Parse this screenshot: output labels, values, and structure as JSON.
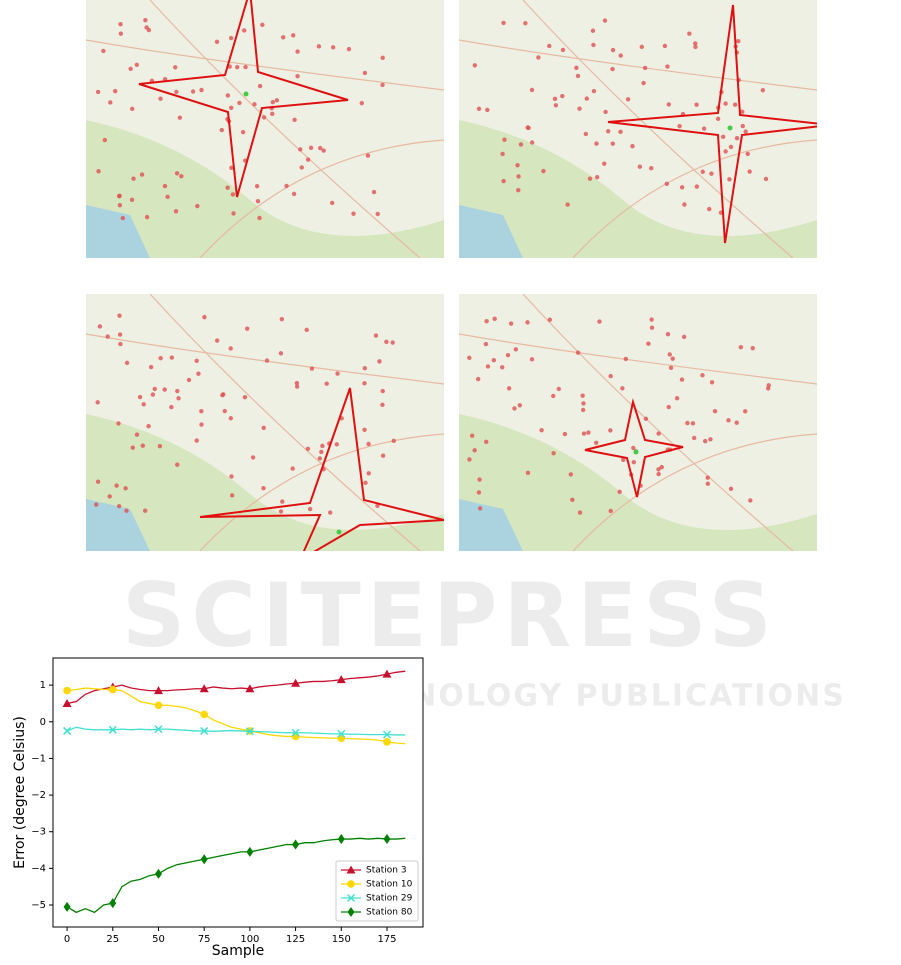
{
  "watermark": {
    "title": "SCITEPRESS",
    "subtitle": "SCIENCE AND TECHNOLOGY PUBLICATIONS"
  },
  "chart_data": {
    "type": "line",
    "xlabel": "Sample",
    "ylabel": "Error (degree Celsius)",
    "x": [
      0,
      5,
      10,
      15,
      20,
      25,
      30,
      35,
      40,
      45,
      50,
      55,
      60,
      65,
      70,
      75,
      80,
      85,
      90,
      95,
      100,
      105,
      110,
      115,
      120,
      125,
      130,
      135,
      140,
      145,
      150,
      155,
      160,
      165,
      170,
      175,
      180,
      185
    ],
    "marker_every": 5,
    "legend": "lower right",
    "series": [
      {
        "name": "Station 3",
        "color": "#c8102e",
        "marker": "triangle",
        "values": [
          0.5,
          0.55,
          0.75,
          0.85,
          0.9,
          0.95,
          1.0,
          0.92,
          0.88,
          0.85,
          0.85,
          0.85,
          0.87,
          0.88,
          0.9,
          0.9,
          0.95,
          0.92,
          0.9,
          0.92,
          0.9,
          0.95,
          0.98,
          1.0,
          1.03,
          1.05,
          1.08,
          1.1,
          1.1,
          1.12,
          1.15,
          1.18,
          1.2,
          1.22,
          1.25,
          1.3,
          1.35,
          1.38
        ]
      },
      {
        "name": "Station 10",
        "color": "#ffd700",
        "marker": "circle",
        "values": [
          0.85,
          0.88,
          0.92,
          0.9,
          0.88,
          0.88,
          0.85,
          0.7,
          0.55,
          0.5,
          0.45,
          0.45,
          0.42,
          0.38,
          0.3,
          0.2,
          0.05,
          -0.05,
          -0.15,
          -0.2,
          -0.25,
          -0.3,
          -0.35,
          -0.38,
          -0.4,
          -0.4,
          -0.42,
          -0.43,
          -0.44,
          -0.45,
          -0.45,
          -0.46,
          -0.47,
          -0.48,
          -0.5,
          -0.55,
          -0.58,
          -0.6
        ]
      },
      {
        "name": "Station 29",
        "color": "#40e0d0",
        "marker": "x",
        "values": [
          -0.25,
          -0.15,
          -0.2,
          -0.22,
          -0.22,
          -0.22,
          -0.2,
          -0.22,
          -0.2,
          -0.22,
          -0.2,
          -0.2,
          -0.22,
          -0.23,
          -0.25,
          -0.25,
          -0.26,
          -0.25,
          -0.24,
          -0.25,
          -0.26,
          -0.27,
          -0.28,
          -0.29,
          -0.3,
          -0.3,
          -0.3,
          -0.31,
          -0.32,
          -0.33,
          -0.33,
          -0.34,
          -0.34,
          -0.35,
          -0.35,
          -0.35,
          -0.36,
          -0.36
        ]
      },
      {
        "name": "Station 80",
        "color": "#008000",
        "marker": "diamond",
        "values": [
          -5.05,
          -5.2,
          -5.1,
          -5.2,
          -5.0,
          -4.95,
          -4.5,
          -4.35,
          -4.3,
          -4.2,
          -4.15,
          -4.0,
          -3.9,
          -3.85,
          -3.8,
          -3.75,
          -3.7,
          -3.65,
          -3.6,
          -3.55,
          -3.55,
          -3.5,
          -3.45,
          -3.4,
          -3.35,
          -3.35,
          -3.3,
          -3.3,
          -3.25,
          -3.22,
          -3.2,
          -3.2,
          -3.18,
          -3.2,
          -3.18,
          -3.2,
          -3.2,
          -3.18
        ]
      }
    ],
    "xlim": [
      -7.7,
      194.7
    ],
    "xticks": [
      0,
      25,
      50,
      75,
      100,
      125,
      150,
      175
    ],
    "ylim": [
      -5.6,
      1.74
    ],
    "yticks": [
      {
        "value": -5,
        "label": "−5"
      },
      {
        "value": -4,
        "label": "−4"
      },
      {
        "value": -3,
        "label": "−3"
      },
      {
        "value": -2,
        "label": "−2"
      },
      {
        "value": -1,
        "label": "−1"
      },
      0,
      1
    ]
  }
}
